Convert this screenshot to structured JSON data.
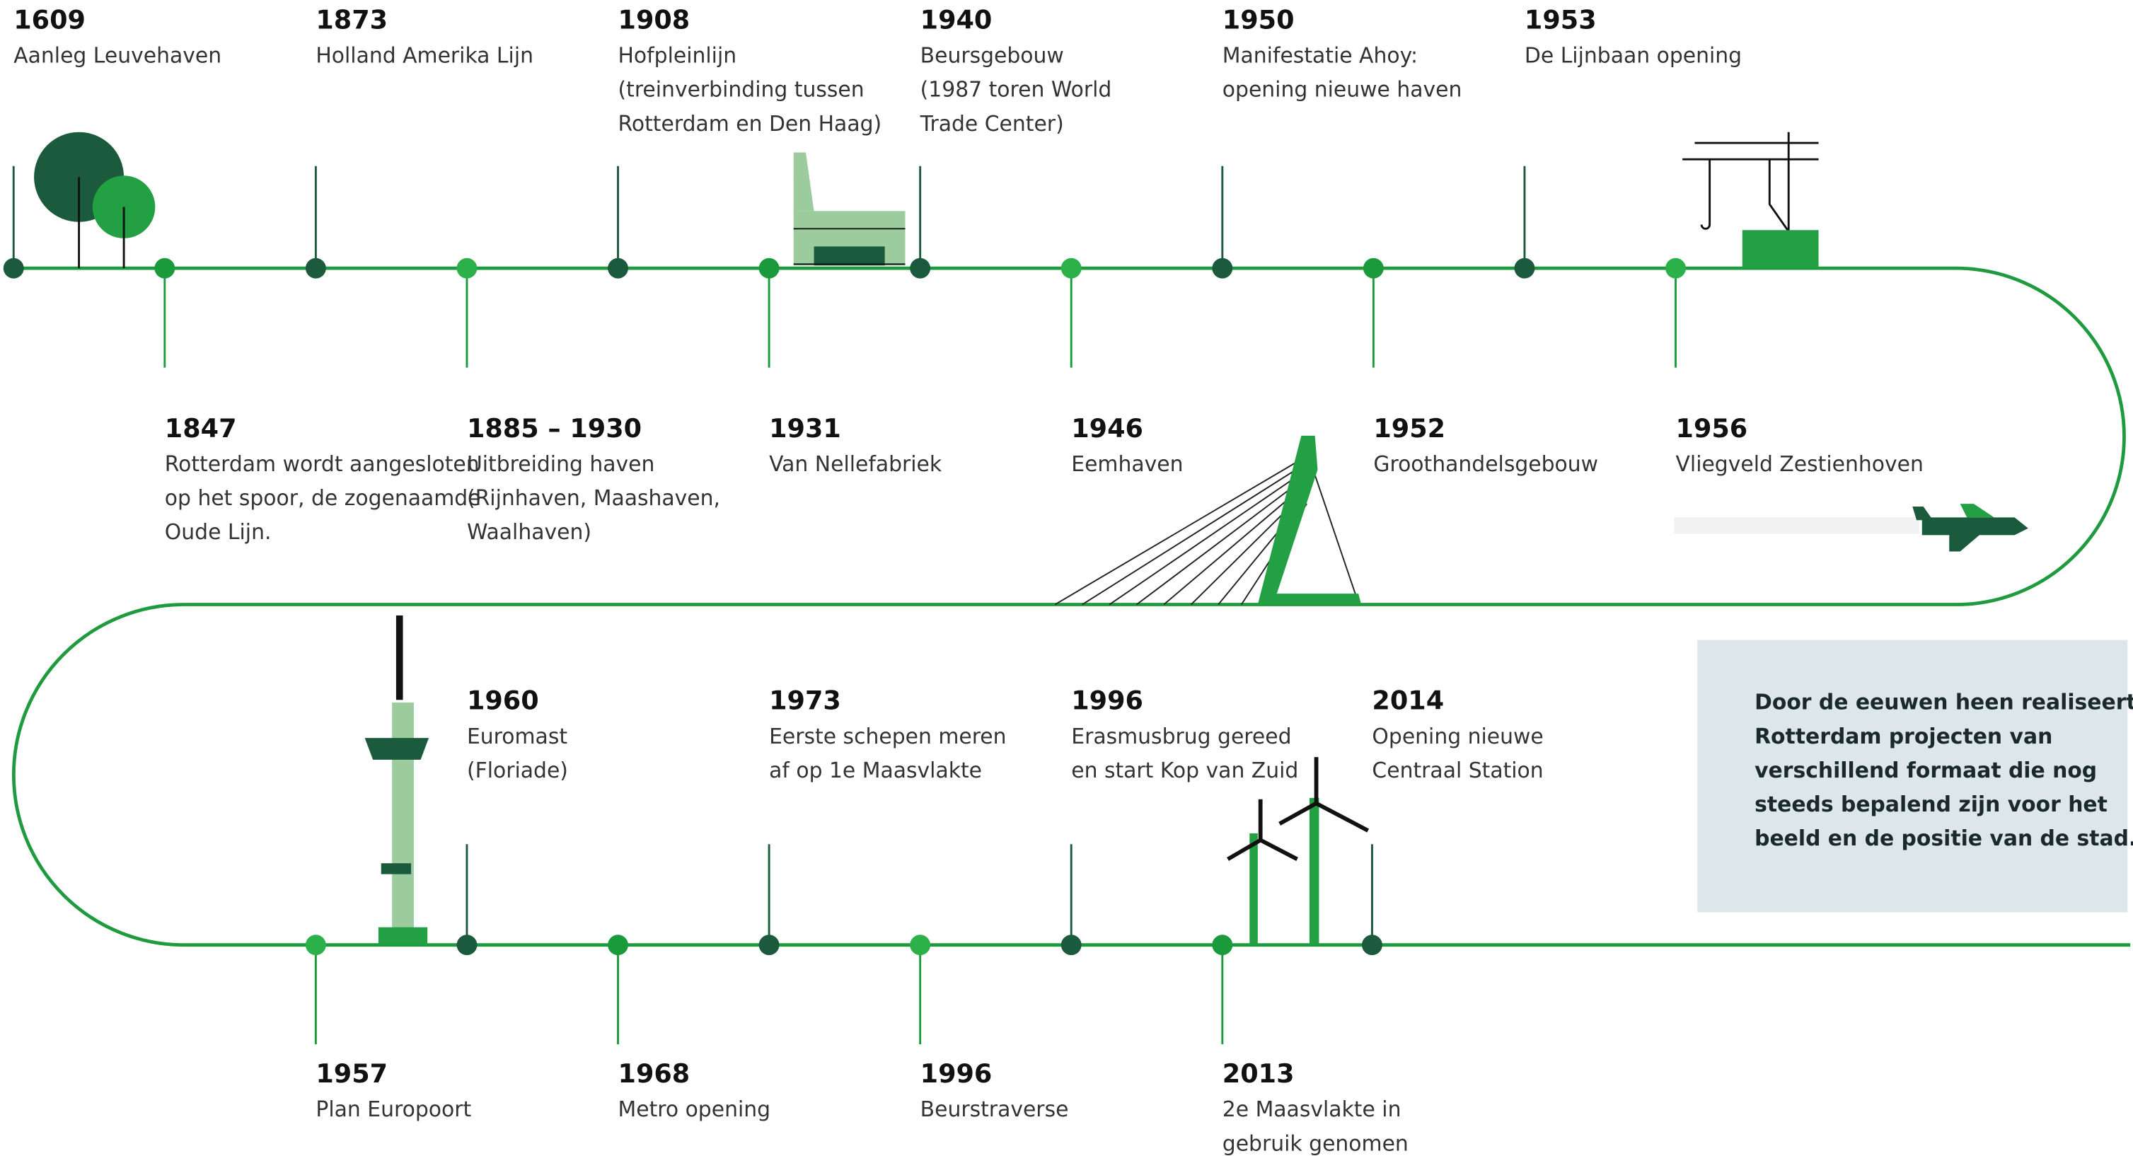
{
  "events": [
    {
      "year": "1609",
      "lines": [
        "Aanleg Leuvehaven"
      ]
    },
    {
      "year": "1873",
      "lines": [
        "Holland Amerika Lijn"
      ]
    },
    {
      "year": "1908",
      "lines": [
        "Hofpleinlijn",
        "(treinverbinding tussen",
        "Rotterdam en Den Haag)"
      ]
    },
    {
      "year": "1940",
      "lines": [
        "Beursgebouw",
        "(1987 toren World",
        "Trade Center)"
      ]
    },
    {
      "year": "1950",
      "lines": [
        "Manifestatie Ahoy:",
        "opening nieuwe haven"
      ]
    },
    {
      "year": "1953",
      "lines": [
        "De Lijnbaan opening"
      ]
    },
    {
      "year": "1847",
      "lines": [
        "Rotterdam wordt aangesloten",
        "op het spoor, de zogenaamde",
        "Oude Lijn."
      ]
    },
    {
      "year": "1885 – 1930",
      "lines": [
        "Uitbreiding haven",
        "(Rijnhaven, Maashaven,",
        "Waalhaven)"
      ]
    },
    {
      "year": "1931",
      "lines": [
        "Van Nellefabriek"
      ]
    },
    {
      "year": "1946",
      "lines": [
        "Eemhaven"
      ]
    },
    {
      "year": "1952",
      "lines": [
        "Groothandelsgebouw"
      ]
    },
    {
      "year": "1956",
      "lines": [
        "Vliegveld Zestienhoven"
      ]
    },
    {
      "year": "1960",
      "lines": [
        "Euromast",
        "(Floriade)"
      ]
    },
    {
      "year": "1973",
      "lines": [
        "Eerste schepen meren",
        "af op 1e Maasvlakte"
      ]
    },
    {
      "year": "1996",
      "lines": [
        "Erasmusbrug gereed",
        "en start Kop van Zuid"
      ]
    },
    {
      "year": "2014",
      "lines": [
        "Opening nieuwe",
        "Centraal Station"
      ]
    },
    {
      "year": "1957",
      "lines": [
        "Plan Europoort"
      ]
    },
    {
      "year": "1968",
      "lines": [
        "Metro opening"
      ]
    },
    {
      "year": "1996",
      "lines": [
        "Beurstraverse"
      ]
    },
    {
      "year": "2013",
      "lines": [
        "2e Maasvlakte  in",
        "gebruik genomen"
      ]
    }
  ],
  "note": {
    "lines": [
      "Door de eeuwen heen realiseert",
      "Rotterdam projecten van",
      "verschillend formaat die nog",
      "steeds bepalend zijn voor het",
      "beeld en de positie van de stad."
    ]
  }
}
